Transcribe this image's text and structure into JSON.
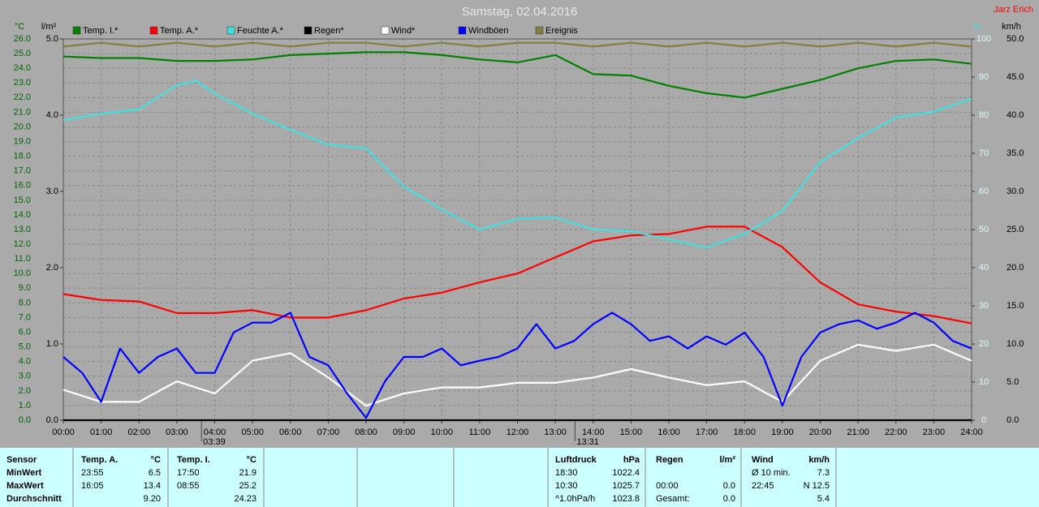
{
  "chart_data": {
    "type": "line",
    "title": "Samstag, 02.04.2016",
    "author": "Jarz Erich",
    "y_label": "°C",
    "y2_label": "l/m²",
    "y3_label": "%",
    "y4_label": "km/h",
    "xlim": [
      0,
      24
    ],
    "xticks": [
      {
        "value": 0,
        "label": "00:00"
      },
      {
        "value": 1,
        "label": "01:00"
      },
      {
        "value": 2,
        "label": "02:00"
      },
      {
        "value": 3,
        "label": "03:00"
      },
      {
        "value": 4,
        "label": "04:00"
      },
      {
        "value": 5,
        "label": "05:00"
      },
      {
        "value": 6,
        "label": "06:00"
      },
      {
        "value": 7,
        "label": "07:00"
      },
      {
        "value": 8,
        "label": "08:00"
      },
      {
        "value": 9,
        "label": "09:00"
      },
      {
        "value": 10,
        "label": "10:00"
      },
      {
        "value": 11,
        "label": "11:00"
      },
      {
        "value": 12,
        "label": "12:00"
      },
      {
        "value": 13,
        "label": "13:00"
      },
      {
        "value": 14,
        "label": "14:00"
      },
      {
        "value": 15,
        "label": "15:00"
      },
      {
        "value": 16,
        "label": "16:00"
      },
      {
        "value": 17,
        "label": "17:00"
      },
      {
        "value": 18,
        "label": "18:00"
      },
      {
        "value": 19,
        "label": "19:00"
      },
      {
        "value": 20,
        "label": "20:00"
      },
      {
        "value": 21,
        "label": "21:00"
      },
      {
        "value": 22,
        "label": "22:00"
      },
      {
        "value": 23,
        "label": "23:00"
      },
      {
        "value": 24,
        "label": "24:00"
      }
    ],
    "annotations": [
      {
        "value": 3.65,
        "label": "03:39"
      },
      {
        "value": 13.52,
        "label": "13:31"
      }
    ],
    "ylim": [
      0,
      26
    ],
    "yticks": [
      {
        "value": 0,
        "label": "0.0"
      },
      {
        "value": 1,
        "label": "1.0"
      },
      {
        "value": 2,
        "label": "2.0"
      },
      {
        "value": 3,
        "label": "3.0"
      },
      {
        "value": 4,
        "label": "4.0"
      },
      {
        "value": 5,
        "label": "5.0"
      },
      {
        "value": 6,
        "label": "6.0"
      },
      {
        "value": 7,
        "label": "7.0"
      },
      {
        "value": 8,
        "label": "8.0"
      },
      {
        "value": 9,
        "label": "9.0"
      },
      {
        "value": 10,
        "label": "10.0"
      },
      {
        "value": 11,
        "label": "11.0"
      },
      {
        "value": 12,
        "label": "12.0"
      },
      {
        "value": 13,
        "label": "13.0"
      },
      {
        "value": 14,
        "label": "14.0"
      },
      {
        "value": 15,
        "label": "15.0"
      },
      {
        "value": 16,
        "label": "16.0"
      },
      {
        "value": 17,
        "label": "17.0"
      },
      {
        "value": 18,
        "label": "18.0"
      },
      {
        "value": 19,
        "label": "19.0"
      },
      {
        "value": 20,
        "label": "20.0"
      },
      {
        "value": 21,
        "label": "21.0"
      },
      {
        "value": 22,
        "label": "22.0"
      },
      {
        "value": 23,
        "label": "23.0"
      },
      {
        "value": 24,
        "label": "24.0"
      },
      {
        "value": 25,
        "label": "25.0"
      },
      {
        "value": 26,
        "label": "26.0"
      }
    ],
    "y2lim": [
      0,
      5
    ],
    "y2ticks": [
      {
        "value": 0,
        "label": "0.0"
      },
      {
        "value": 1,
        "label": "1.0"
      },
      {
        "value": 2,
        "label": "2.0"
      },
      {
        "value": 3,
        "label": "3.0"
      },
      {
        "value": 4,
        "label": "4.0"
      },
      {
        "value": 5,
        "label": "5.0"
      }
    ],
    "y3lim": [
      0,
      100
    ],
    "y3ticks": [
      0,
      10,
      20,
      30,
      40,
      50,
      60,
      70,
      80,
      90,
      100
    ],
    "y4lim": [
      0,
      50
    ],
    "y4ticks": [
      {
        "value": 0,
        "label": "0.0"
      },
      {
        "value": 5,
        "label": "5.0"
      },
      {
        "value": 10,
        "label": "10.0"
      },
      {
        "value": 15,
        "label": "15.0"
      },
      {
        "value": 20,
        "label": "20.0"
      },
      {
        "value": 25,
        "label": "25.0"
      },
      {
        "value": 30,
        "label": "30.0"
      },
      {
        "value": 35,
        "label": "35.0"
      },
      {
        "value": 40,
        "label": "40.0"
      },
      {
        "value": 45,
        "label": "45.0"
      },
      {
        "value": 50,
        "label": "50.0"
      }
    ],
    "grid": true,
    "series": [
      {
        "name": "Temp. I.*",
        "color": "#008000",
        "axis": "y",
        "x": [
          0,
          1,
          2,
          3,
          4,
          5,
          6,
          7,
          8,
          9,
          10,
          11,
          12,
          13,
          14,
          15,
          16,
          17,
          18,
          19,
          20,
          21,
          22,
          23,
          24
        ],
        "values": [
          24.8,
          24.7,
          24.7,
          24.5,
          24.5,
          24.6,
          24.9,
          25.0,
          25.1,
          25.1,
          24.9,
          24.6,
          24.4,
          24.9,
          23.6,
          23.5,
          22.8,
          22.3,
          22.0,
          22.6,
          23.2,
          24.0,
          24.5,
          24.6,
          24.3
        ]
      },
      {
        "name": "Temp. A.*",
        "color": "#ff0000",
        "axis": "y",
        "x": [
          0,
          1,
          2,
          3,
          4,
          5,
          6,
          7,
          8,
          9,
          10,
          11,
          12,
          13,
          14,
          15,
          16,
          17,
          18,
          19,
          20,
          21,
          22,
          23,
          24
        ],
        "values": [
          8.6,
          8.2,
          8.1,
          7.3,
          7.3,
          7.5,
          7.0,
          7.0,
          7.5,
          8.3,
          8.7,
          9.4,
          10.0,
          11.1,
          12.2,
          12.6,
          12.7,
          13.2,
          13.2,
          11.8,
          9.4,
          7.9,
          7.4,
          7.1,
          6.6
        ]
      },
      {
        "name": "Feuchte A.*",
        "color": "#40e0e0",
        "axis": "y3",
        "x": [
          0,
          1,
          2,
          3,
          3.5,
          4,
          5,
          6,
          7,
          8,
          9,
          10,
          11,
          12,
          13,
          14,
          15,
          16,
          17,
          18,
          19,
          20,
          21,
          22,
          23,
          24
        ],
        "values": [
          78.7,
          80.4,
          81.5,
          87.9,
          89.0,
          85.7,
          80.4,
          76.2,
          72.3,
          71.3,
          61.3,
          55.3,
          50.0,
          52.8,
          53.2,
          50.0,
          49.6,
          47.4,
          45.3,
          48.9,
          54.9,
          67.7,
          74.0,
          79.4,
          80.9,
          84.3
        ]
      },
      {
        "name": "Regen*",
        "color": "#000000",
        "axis": "y2",
        "x": [
          0,
          24
        ],
        "values": [
          0,
          0
        ]
      },
      {
        "name": "Wind*",
        "color": "#ffffff",
        "axis": "y4",
        "x": [
          0,
          1,
          2,
          3,
          4,
          5,
          6,
          7,
          8,
          9,
          10,
          11,
          12,
          13,
          14,
          15,
          16,
          17,
          18,
          19,
          20,
          21,
          22,
          23,
          24
        ],
        "values": [
          4.0,
          2.4,
          2.4,
          5.1,
          3.5,
          7.8,
          8.8,
          5.6,
          1.9,
          3.5,
          4.3,
          4.3,
          4.9,
          4.9,
          5.6,
          6.7,
          5.6,
          4.6,
          5.1,
          2.4,
          7.8,
          9.9,
          9.1,
          9.9,
          7.8
        ]
      },
      {
        "name": "Windböen",
        "color": "#0000ff",
        "axis": "y4",
        "x": [
          0,
          0.5,
          1,
          1.5,
          2,
          2.5,
          3,
          3.5,
          4,
          4.5,
          5,
          5.5,
          6,
          6.5,
          7,
          7.5,
          8,
          8.5,
          9,
          9.5,
          10,
          10.5,
          11,
          11.5,
          12,
          12.5,
          13,
          13.5,
          14,
          14.5,
          15,
          15.5,
          16,
          16.5,
          17,
          17.5,
          18,
          18.5,
          19,
          19.5,
          20,
          20.5,
          21,
          21.5,
          22,
          22.5,
          23,
          23.5,
          24
        ],
        "values": [
          8.3,
          6.2,
          2.4,
          9.4,
          6.2,
          8.3,
          9.4,
          6.2,
          6.2,
          11.5,
          12.8,
          12.8,
          14.1,
          8.3,
          7.2,
          3.5,
          0.3,
          5.1,
          8.3,
          8.3,
          9.4,
          7.2,
          7.8,
          8.3,
          9.4,
          12.6,
          9.4,
          10.4,
          12.6,
          14.1,
          12.6,
          10.4,
          11.0,
          9.4,
          11.0,
          9.9,
          11.5,
          8.3,
          1.9,
          8.3,
          11.5,
          12.6,
          13.1,
          12.0,
          12.8,
          14.1,
          12.8,
          10.4,
          9.4
        ]
      },
      {
        "name": "Ereignis",
        "color": "#808040",
        "axis": "y3",
        "x": [
          0,
          1,
          2,
          3,
          4,
          5,
          6,
          7,
          8,
          9,
          10,
          11,
          12,
          13,
          14,
          15,
          16,
          17,
          18,
          19,
          20,
          21,
          22,
          23,
          24
        ],
        "values": [
          98,
          99,
          98,
          99,
          98,
          99,
          98,
          99,
          99,
          98,
          99,
          98,
          99,
          99,
          98,
          99,
          98,
          99,
          98,
          99,
          98,
          99,
          98,
          99,
          98
        ]
      }
    ]
  },
  "table": {
    "header": {
      "label": "Sensor",
      "temp_a": [
        "Temp. A.",
        "°C"
      ],
      "temp_i": [
        "Temp. I.",
        "°C"
      ],
      "luftdruck": [
        "Luftdruck",
        "hPa"
      ],
      "regen": [
        "Regen",
        "l/m²"
      ],
      "wind": [
        "Wind",
        "km/h"
      ]
    },
    "rows": [
      {
        "label": "MinWert",
        "temp_a": [
          "23:55",
          "6.5"
        ],
        "temp_i": [
          "17:50",
          "21.9"
        ],
        "luftdruck": [
          "18:30",
          "1022.4"
        ],
        "wind": [
          "Ø 10 min.",
          "7.3"
        ]
      },
      {
        "label": "MaxWert",
        "temp_a": [
          "16:05",
          "13.4"
        ],
        "temp_i": [
          "08:55",
          "25.2"
        ],
        "luftdruck": [
          "10:30",
          "1025.7"
        ],
        "regen": [
          "00:00",
          "0.0"
        ],
        "wind": [
          "22:45",
          "N 12.5"
        ]
      },
      {
        "label": "Durchschnitt",
        "temp_a": [
          "9.20"
        ],
        "temp_i": [
          "24.23"
        ],
        "luftdruck": [
          "^1.0hPa/h",
          "1023.8"
        ],
        "regen": [
          "Gesamt:",
          "0.0"
        ],
        "wind": [
          "5.4"
        ]
      }
    ]
  }
}
